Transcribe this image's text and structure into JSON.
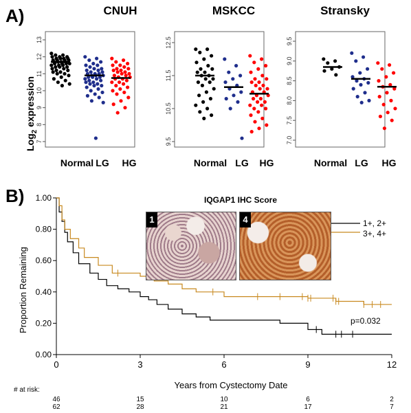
{
  "panel_a_label": "A)",
  "panel_b_label": "B)",
  "y_axis_label": "Log",
  "y_axis_label_sub": "2",
  "y_axis_label_rest": " expression",
  "colors": {
    "normal": "#000000",
    "lg": "#1f2e8c",
    "hg": "#ff0000",
    "high_score": "#c8891f",
    "low_score": "#000000"
  },
  "chart_data": [
    {
      "type": "scatter",
      "title": "CNUH",
      "categories": [
        "Normal",
        "LG",
        "HG"
      ],
      "ylim": [
        7,
        13
      ],
      "yticks": [
        "7",
        "8",
        "9",
        "10",
        "11",
        "12",
        "13"
      ],
      "medians": [
        11.7,
        10.9,
        10.75
      ],
      "series": [
        {
          "values": [
            12.2,
            12.1,
            12.1,
            12.0,
            12.0,
            12.0,
            11.9,
            11.9,
            11.9,
            11.9,
            11.8,
            11.8,
            11.8,
            11.8,
            11.7,
            11.7,
            11.7,
            11.7,
            11.6,
            11.6,
            11.6,
            11.6,
            11.5,
            11.5,
            11.5,
            11.4,
            11.4,
            11.4,
            11.3,
            11.3,
            11.2,
            11.2,
            11.1,
            11.1,
            11.0,
            11.0,
            10.9,
            10.8,
            10.7,
            10.6,
            10.5,
            10.4,
            10.3
          ]
        },
        {
          "values": [
            12.0,
            11.9,
            11.8,
            11.7,
            11.6,
            11.5,
            11.5,
            11.4,
            11.3,
            11.3,
            11.2,
            11.2,
            11.1,
            11.1,
            11.0,
            11.0,
            11.0,
            10.9,
            10.9,
            10.9,
            10.8,
            10.8,
            10.8,
            10.7,
            10.7,
            10.6,
            10.6,
            10.5,
            10.5,
            10.4,
            10.4,
            10.3,
            10.3,
            10.2,
            10.1,
            10.0,
            9.9,
            9.8,
            9.7,
            9.6,
            9.4,
            9.3,
            7.2
          ]
        },
        {
          "values": [
            11.9,
            11.8,
            11.7,
            11.6,
            11.5,
            11.5,
            11.4,
            11.3,
            11.3,
            11.2,
            11.2,
            11.1,
            11.1,
            11.0,
            11.0,
            10.9,
            10.9,
            10.8,
            10.8,
            10.7,
            10.7,
            10.6,
            10.5,
            10.5,
            10.4,
            10.3,
            10.2,
            10.1,
            10.0,
            9.9,
            9.8,
            9.6,
            9.4,
            9.2,
            9.0,
            8.7
          ]
        }
      ]
    },
    {
      "type": "scatter",
      "title": "MSKCC",
      "categories": [
        "Normal",
        "LG",
        "HG"
      ],
      "ylim": [
        9.5,
        12.5
      ],
      "yticks": [
        "9.5",
        "10.5",
        "11.5",
        "12.5"
      ],
      "medians": [
        11.5,
        11.15,
        10.95
      ],
      "series": [
        {
          "values": [
            12.3,
            12.3,
            12.2,
            12.1,
            12.0,
            11.9,
            11.8,
            11.7,
            11.7,
            11.6,
            11.6,
            11.5,
            11.5,
            11.4,
            11.4,
            11.3,
            11.3,
            11.2,
            11.1,
            11.0,
            10.9,
            10.8,
            10.7,
            10.6,
            10.5,
            10.4,
            10.3,
            10.2
          ]
        },
        {
          "values": [
            12.0,
            11.8,
            11.6,
            11.5,
            11.4,
            11.3,
            11.2,
            11.1,
            11.0,
            10.9,
            10.8,
            10.7,
            10.5,
            9.6
          ]
        },
        {
          "values": [
            12.1,
            12.0,
            11.9,
            11.8,
            11.7,
            11.6,
            11.5,
            11.4,
            11.4,
            11.3,
            11.3,
            11.2,
            11.2,
            11.1,
            11.1,
            11.0,
            11.0,
            10.9,
            10.9,
            10.8,
            10.8,
            10.7,
            10.7,
            10.6,
            10.6,
            10.5,
            10.5,
            10.4,
            10.3,
            10.2,
            10.1,
            10.0,
            9.9,
            9.8
          ]
        }
      ]
    },
    {
      "type": "scatter",
      "title": "Stransky",
      "categories": [
        "Normal",
        "LG",
        "HG"
      ],
      "ylim": [
        7.0,
        9.5
      ],
      "yticks": [
        "7.0",
        "7.5",
        "8.0",
        "8.5",
        "9.0",
        "9.5"
      ],
      "medians": [
        8.85,
        8.55,
        8.35
      ],
      "series": [
        {
          "values": [
            9.05,
            9.0,
            8.95,
            8.85,
            8.8,
            8.75,
            8.65
          ]
        },
        {
          "values": [
            9.2,
            9.1,
            9.0,
            8.8,
            8.7,
            8.6,
            8.55,
            8.5,
            8.45,
            8.4,
            8.3,
            8.2,
            8.1,
            8.0,
            7.95
          ]
        },
        {
          "values": [
            8.95,
            8.9,
            8.8,
            8.7,
            8.6,
            8.5,
            8.4,
            8.35,
            8.3,
            8.2,
            8.1,
            8.0,
            7.9,
            7.8,
            7.7,
            7.6,
            7.5,
            7.3
          ]
        }
      ]
    },
    {
      "type": "line",
      "title": "IQGAP1 IHC Score",
      "xlabel": "Years from Cystectomy Date",
      "ylabel": "Proportion Remaining",
      "xlim": [
        0,
        12
      ],
      "ylim": [
        0,
        1
      ],
      "xticks": [
        "0",
        "3",
        "6",
        "9",
        "12"
      ],
      "yticks": [
        "0.00",
        "0.20",
        "0.40",
        "0.60",
        "0.80",
        "1.00"
      ],
      "p_value": "p=0.032",
      "series": [
        {
          "name": "1+, 2+",
          "x": [
            0,
            0.1,
            0.2,
            0.3,
            0.4,
            0.6,
            0.8,
            1.2,
            1.5,
            1.8,
            2.2,
            2.6,
            3.0,
            3.3,
            3.6,
            4.0,
            4.5,
            5.0,
            5.5,
            6.0,
            6.5,
            7.0,
            7.5,
            8.0,
            8.5,
            9.0,
            9.5,
            10.0,
            12.0
          ],
          "y": [
            1.0,
            0.91,
            0.85,
            0.78,
            0.72,
            0.65,
            0.58,
            0.52,
            0.48,
            0.44,
            0.42,
            0.4,
            0.37,
            0.35,
            0.32,
            0.29,
            0.26,
            0.24,
            0.22,
            0.22,
            0.22,
            0.22,
            0.22,
            0.2,
            0.2,
            0.16,
            0.13,
            0.13,
            0.13
          ],
          "censor_x": [
            9.3,
            10.0,
            10.2,
            10.6
          ]
        },
        {
          "name": "3+, 4+",
          "x": [
            0,
            0.1,
            0.2,
            0.3,
            0.5,
            0.8,
            1.0,
            1.5,
            2.0,
            2.5,
            3.0,
            3.5,
            4.0,
            4.5,
            5.0,
            6.0,
            7.0,
            8.0,
            9.0,
            10.0,
            11.0,
            12.0
          ],
          "y": [
            1.0,
            0.95,
            0.86,
            0.8,
            0.74,
            0.68,
            0.62,
            0.57,
            0.52,
            0.52,
            0.5,
            0.47,
            0.45,
            0.42,
            0.4,
            0.37,
            0.37,
            0.37,
            0.36,
            0.34,
            0.32,
            0.32
          ],
          "censor_x": [
            2.2,
            5.6,
            7.2,
            8.0,
            8.8,
            9.0,
            9.1,
            9.9,
            10.0,
            10.1,
            11.0,
            11.3,
            11.6
          ]
        }
      ],
      "at_risk_label": "# at risk:",
      "at_risk": {
        "x": [
          0,
          3,
          6,
          9,
          12
        ],
        "rows": [
          [
            "46",
            "15",
            "10",
            "6",
            "2"
          ],
          [
            "62",
            "28",
            "21",
            "17",
            "7"
          ]
        ]
      },
      "insets": [
        {
          "label": "1"
        },
        {
          "label": "4"
        }
      ]
    }
  ]
}
